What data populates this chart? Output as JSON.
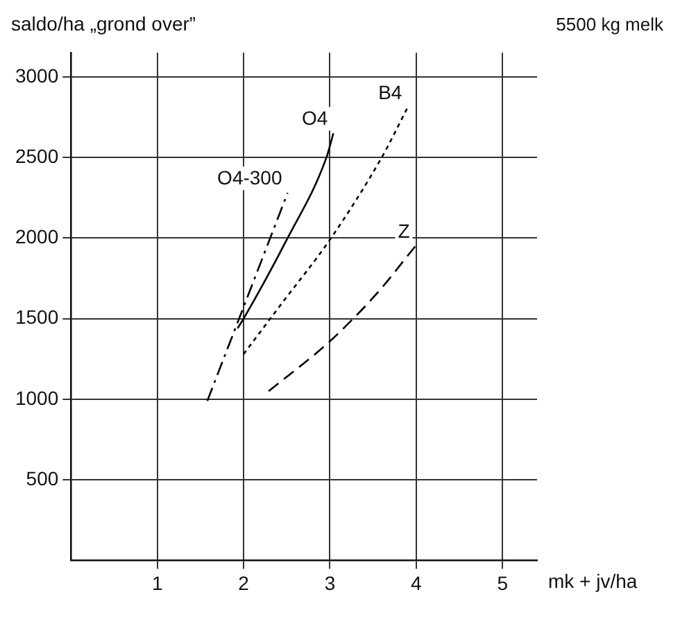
{
  "chart_data": {
    "type": "line",
    "ylabel": "saldo/ha „grond over”",
    "xlabel": "mk + jv/ha",
    "annotations": [
      "5500 kg melk"
    ],
    "xlim": [
      0,
      5.4
    ],
    "ylim": [
      0,
      3150
    ],
    "xticks": [
      1,
      2,
      3,
      4,
      5
    ],
    "yticks": [
      500,
      1000,
      1500,
      2000,
      2500,
      3000
    ],
    "grid": true,
    "legend": false,
    "marker": "none",
    "series": [
      {
        "name": "O4-300",
        "color": "#000000",
        "line_style": "dashdot",
        "x": [
          1.58,
          2.51
        ],
        "values": [
          990,
          2280
        ]
      },
      {
        "name": "O4",
        "color": "#000000",
        "line_style": "solid",
        "x": [
          1.93,
          2,
          2.5,
          2.96,
          3.04
        ],
        "values": [
          1440,
          1500,
          1990,
          2500,
          2650
        ]
      },
      {
        "name": "B4",
        "color": "#000000",
        "line_style": "dotted",
        "x": [
          2,
          2.45,
          3,
          3.6,
          3.9
        ],
        "values": [
          1280,
          1600,
          1990,
          2500,
          2810
        ]
      },
      {
        "name": "Z",
        "color": "#000000",
        "line_style": "dashed",
        "x": [
          2.29,
          3,
          3.55,
          3.99
        ],
        "values": [
          1050,
          1360,
          1660,
          1950
        ]
      }
    ]
  }
}
